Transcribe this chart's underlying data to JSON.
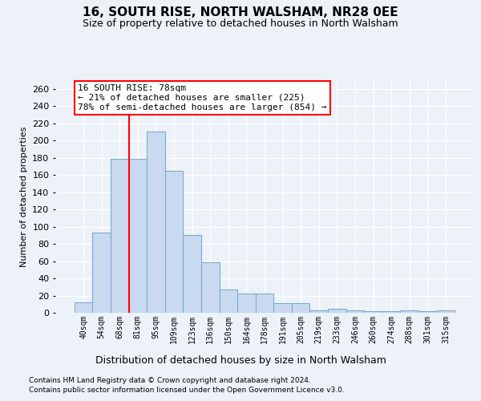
{
  "title": "16, SOUTH RISE, NORTH WALSHAM, NR28 0EE",
  "subtitle": "Size of property relative to detached houses in North Walsham",
  "xlabel": "Distribution of detached houses by size in North Walsham",
  "ylabel": "Number of detached properties",
  "bar_labels": [
    "40sqm",
    "54sqm",
    "68sqm",
    "81sqm",
    "95sqm",
    "109sqm",
    "123sqm",
    "136sqm",
    "150sqm",
    "164sqm",
    "178sqm",
    "191sqm",
    "205sqm",
    "219sqm",
    "233sqm",
    "246sqm",
    "260sqm",
    "274sqm",
    "288sqm",
    "301sqm",
    "315sqm"
  ],
  "bar_values": [
    12,
    93,
    179,
    179,
    210,
    165,
    90,
    59,
    27,
    22,
    22,
    11,
    11,
    3,
    5,
    3,
    2,
    2,
    3,
    2,
    3
  ],
  "bar_color": "#c9daf0",
  "bar_edge_color": "#7aaad0",
  "red_line_x": 2.5,
  "annotation_text_line1": "16 SOUTH RISE: 78sqm",
  "annotation_text_line2": "← 21% of detached houses are smaller (225)",
  "annotation_text_line3": "78% of semi-detached houses are larger (854) →",
  "ylim_max": 270,
  "yticks": [
    0,
    20,
    40,
    60,
    80,
    100,
    120,
    140,
    160,
    180,
    200,
    220,
    240,
    260
  ],
  "footer_line1": "Contains HM Land Registry data © Crown copyright and database right 2024.",
  "footer_line2": "Contains public sector information licensed under the Open Government Licence v3.0.",
  "bg_color": "#edf2f8",
  "title_fontsize": 11,
  "subtitle_fontsize": 9,
  "xlabel_fontsize": 9,
  "ylabel_fontsize": 8,
  "tick_fontsize": 8,
  "xtick_fontsize": 7,
  "footer_fontsize": 6.5,
  "ann_fontsize": 8
}
